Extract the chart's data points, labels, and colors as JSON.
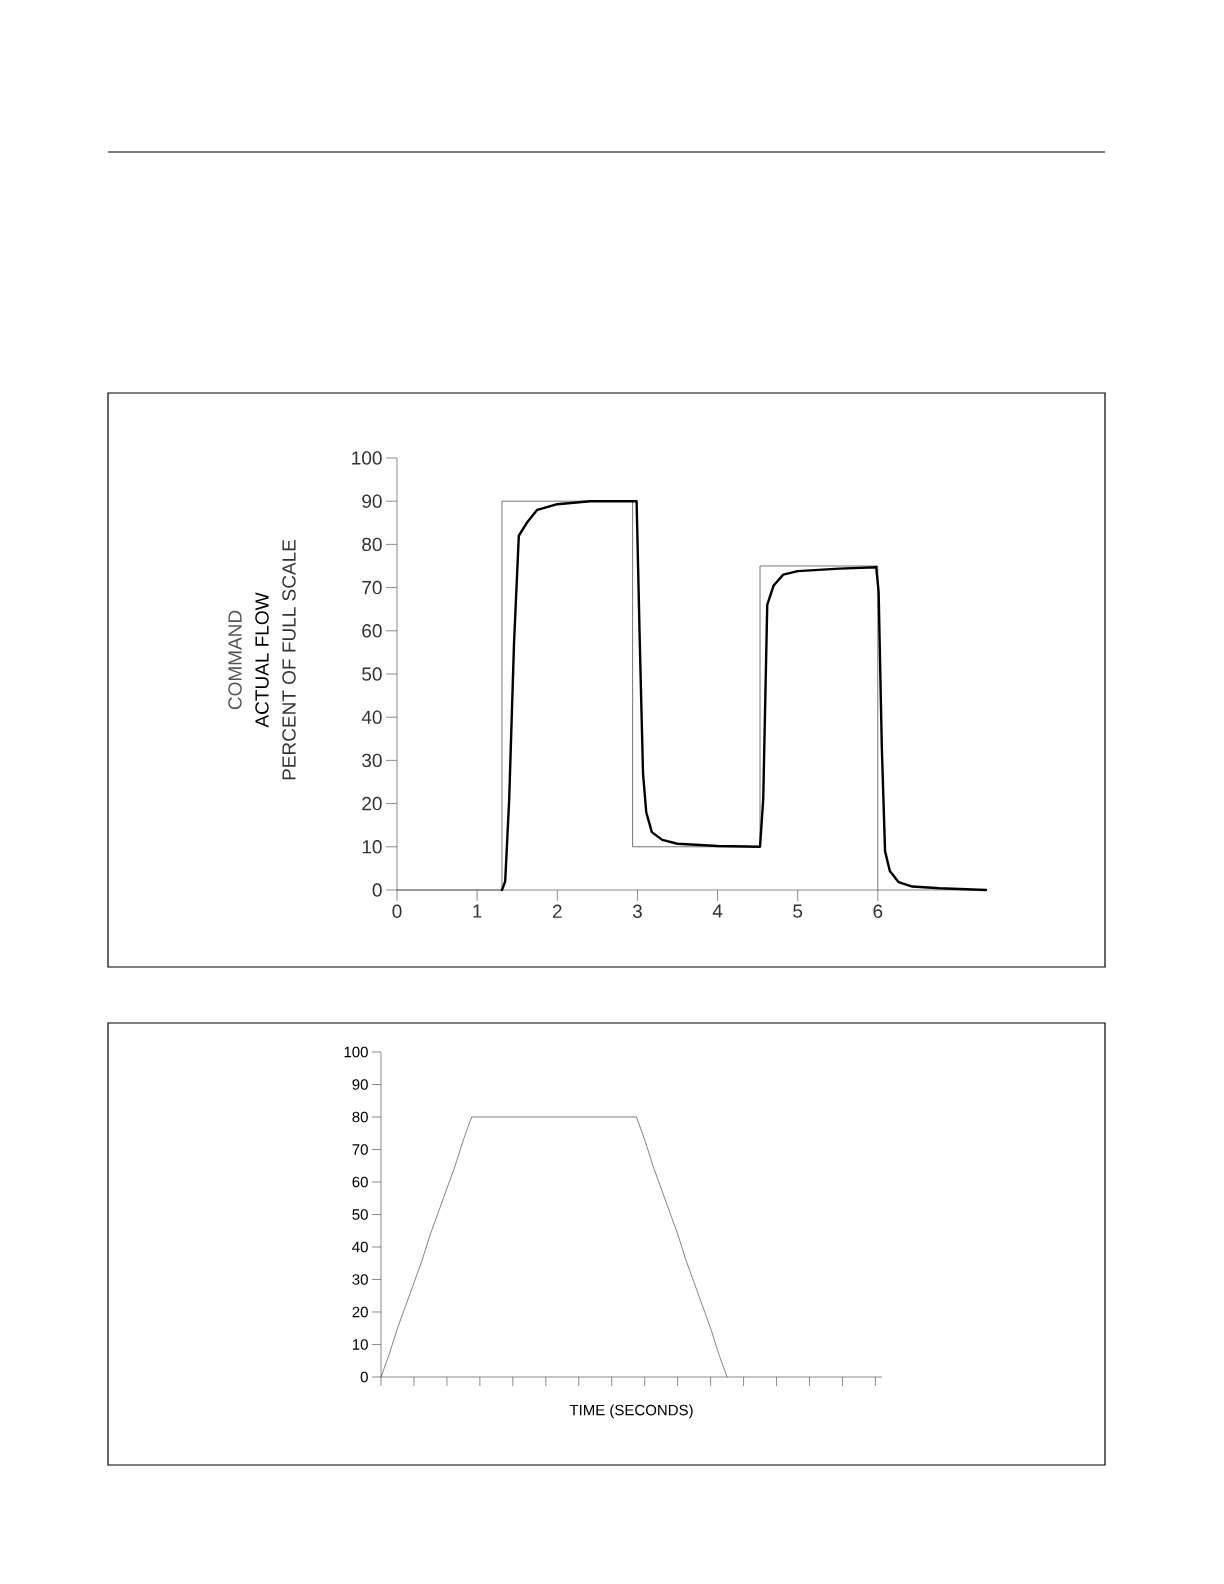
{
  "chart_data": [
    {
      "type": "line",
      "ylabel": "PERCENT OF FULL SCALE",
      "xlim": [
        0,
        7.35
      ],
      "ylim": [
        0,
        100
      ],
      "xticks": [
        0,
        1,
        2,
        3,
        4,
        5,
        6
      ],
      "yticks": [
        0,
        10,
        20,
        30,
        40,
        50,
        60,
        70,
        80,
        90,
        100
      ],
      "series": [
        {
          "name": "COMMAND",
          "color": "#555555",
          "x": [
            0,
            1.31,
            1.31,
            2.94,
            2.94,
            4.53,
            4.53,
            6.0,
            6.0
          ],
          "values": [
            0,
            0,
            90,
            90,
            10,
            10,
            75,
            75,
            0
          ]
        },
        {
          "name": "ACTUAL FLOW",
          "color": "#000000",
          "x": [
            1.31,
            1.35,
            1.4,
            1.46,
            1.52,
            1.62,
            1.75,
            2.0,
            2.41,
            2.94,
            2.99,
            3.03,
            3.07,
            3.11,
            3.18,
            3.31,
            3.5,
            4.0,
            4.53,
            4.57,
            4.62,
            4.7,
            4.82,
            5.0,
            5.52,
            5.98,
            6.01,
            6.05,
            6.09,
            6.15,
            6.26,
            6.43,
            6.77,
            7.35
          ],
          "values": [
            0,
            2,
            21,
            57,
            82,
            85,
            88,
            89.3,
            90,
            90,
            90,
            57,
            27,
            18,
            13.4,
            11.6,
            10.7,
            10.2,
            10,
            21,
            66,
            70.5,
            73,
            73.8,
            74.4,
            74.7,
            69,
            33,
            9,
            4.4,
            1.8,
            0.8,
            0.4,
            0
          ]
        }
      ]
    },
    {
      "type": "line",
      "xlabel": "TIME (SECONDS)",
      "ylim": [
        0,
        100
      ],
      "yticks": [
        0,
        10,
        20,
        30,
        40,
        50,
        60,
        70,
        80,
        90,
        100
      ],
      "categories": [
        null,
        null,
        null,
        null,
        null,
        null,
        null,
        null,
        null,
        null,
        null,
        null,
        null,
        null,
        null,
        null,
        null,
        null,
        null,
        null,
        null,
        null,
        null,
        null,
        null,
        null,
        null,
        null,
        null,
        null,
        null,
        null,
        null,
        null,
        null,
        null,
        null,
        null,
        null,
        null,
        null,
        null,
        null,
        null,
        null,
        null,
        null,
        null,
        null,
        null,
        null,
        null,
        null,
        null,
        null,
        null,
        null,
        null,
        null,
        null,
        null
      ],
      "series": [
        {
          "color": "#333333",
          "values": [
            0,
            7,
            15,
            22,
            29,
            36,
            44,
            51,
            58,
            65,
            73,
            80,
            null,
            null,
            null,
            null,
            null,
            null,
            null,
            null,
            null,
            null,
            null,
            null,
            null,
            null,
            null,
            null,
            null,
            null,
            null,
            80,
            73,
            65,
            58,
            51,
            44,
            36,
            29,
            22,
            15,
            7,
            0,
            null,
            null,
            null,
            null,
            null,
            null,
            null,
            null,
            null,
            null,
            null,
            null,
            null,
            null,
            null,
            null,
            null,
            null
          ]
        }
      ]
    }
  ]
}
